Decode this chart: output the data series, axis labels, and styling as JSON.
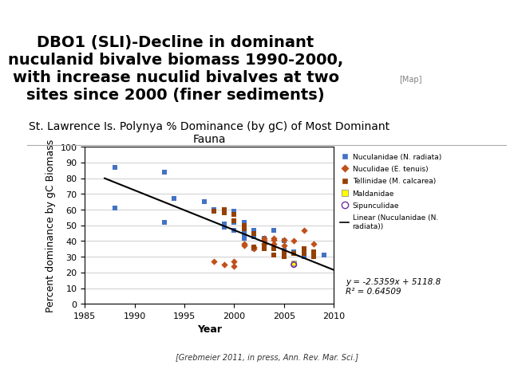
{
  "title_main": "DBO1 (SLI)-Decline in dominant\nnuculanid bivalve biomass 1990-2000,\nwith increase nuculid bivalves at two\nsites since 2000 (finer sediments)",
  "chart_title": "St. Lawrence Is. Polynya % Dominance (by gC) of Most Dominant\nFauna",
  "xlabel": "Year",
  "ylabel": "Percent dominance by gC Biomass",
  "citation": "[Grebmeier 2011, in press, Ann. Rev. Mar. Sci.]",
  "equation": "y = -2.5359x + 5118.8\nR² = 0.64509",
  "xlim": [
    1985,
    2010
  ],
  "ylim": [
    0,
    100
  ],
  "xticks": [
    1985,
    1990,
    1995,
    2000,
    2005,
    2010
  ],
  "yticks": [
    0,
    10,
    20,
    30,
    40,
    50,
    60,
    70,
    80,
    90,
    100
  ],
  "nuculanidae_x": [
    1988,
    1988,
    1993,
    1993,
    1994,
    1997,
    1998,
    1999,
    1999,
    1999,
    1999,
    2000,
    2000,
    2000,
    2001,
    2001,
    2001,
    2001,
    2002,
    2002,
    2002,
    2003,
    2004,
    2005,
    2005,
    2005,
    2006,
    2007,
    2007,
    2008,
    2008,
    2009
  ],
  "nuculanidae_y": [
    87,
    61,
    84,
    52,
    67,
    65,
    60,
    51,
    51,
    50,
    49,
    59,
    52,
    47,
    52,
    51,
    45,
    42,
    47,
    43,
    35,
    42,
    47,
    40,
    34,
    32,
    33,
    32,
    30,
    31,
    30,
    31
  ],
  "nuculidae_x": [
    1998,
    1999,
    2000,
    2000,
    2001,
    2001,
    2002,
    2002,
    2003,
    2003,
    2003,
    2004,
    2004,
    2004,
    2005,
    2005,
    2006,
    2007,
    2008
  ],
  "nuculidae_y": [
    27,
    25,
    27,
    24,
    38,
    37,
    36,
    35,
    42,
    40,
    38,
    42,
    41,
    38,
    41,
    37,
    40,
    47,
    38
  ],
  "tellinidae_x": [
    1998,
    1999,
    1999,
    2000,
    2000,
    2001,
    2001,
    2002,
    2002,
    2003,
    2003,
    2004,
    2004,
    2005,
    2005,
    2006,
    2007,
    2007,
    2008,
    2008
  ],
  "tellinidae_y": [
    59,
    60,
    58,
    57,
    53,
    50,
    48,
    45,
    36,
    37,
    35,
    35,
    31,
    33,
    30,
    32,
    35,
    32,
    33,
    30
  ],
  "maldanidae_x": [
    2006
  ],
  "maldanidae_y": [
    26
  ],
  "sipunculidae_x": [
    2006
  ],
  "sipunculidae_y": [
    25
  ],
  "trendline_slope": -2.5359,
  "trendline_intercept": 5118.8,
  "color_nuculanidae": "#4472C4",
  "color_nuculidae": "#C0501A",
  "color_tellinidae": "#944000",
  "color_maldanidae": "#FFFF00",
  "color_sipunculidae": "#7030A0",
  "bg_color": "#FFFFFF",
  "chart_title_fontsize": 10,
  "axis_label_fontsize": 9,
  "tick_fontsize": 8
}
